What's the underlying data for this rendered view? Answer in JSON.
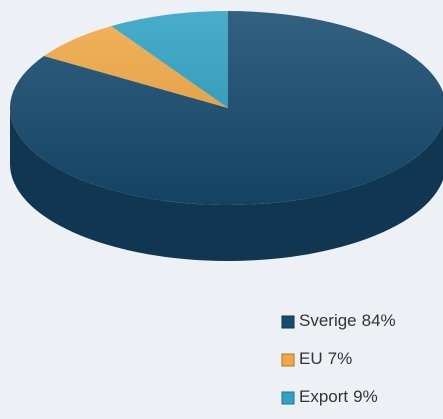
{
  "chart_data": {
    "type": "pie",
    "categories": [
      "Sverige",
      "EU",
      "Export"
    ],
    "values": [
      84,
      7,
      9
    ],
    "value_labels": [
      "84%",
      "7%",
      "9%"
    ],
    "colors": [
      "#174b70",
      "#f2a944",
      "#2fa2c4"
    ],
    "legend": "bottom-right"
  }
}
